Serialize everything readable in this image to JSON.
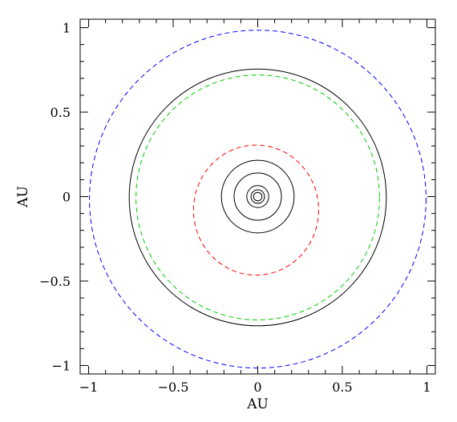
{
  "chart_data": {
    "type": "line",
    "title": "",
    "xlabel": "AU",
    "ylabel": "AU",
    "xlim": [
      -1.05,
      1.05
    ],
    "ylim": [
      -1.05,
      1.05
    ],
    "grid": false,
    "aspect": "equal",
    "x_ticks": {
      "major": [
        -1,
        -0.5,
        0,
        0.5,
        1
      ],
      "labels": [
        "−1",
        "−0.5",
        "0",
        "0.5",
        "1"
      ],
      "minor_step": 0.1
    },
    "y_ticks": {
      "major": [
        -1,
        -0.5,
        0,
        0.5,
        1
      ],
      "labels": [
        "−1",
        "−0.5",
        "0",
        "0.5",
        "1"
      ],
      "minor_step": 0.1
    },
    "curves": [
      {
        "kind": "orbit",
        "style": "solid",
        "color": "#000000",
        "cx": 0.0,
        "cy": 0.0,
        "rx": 0.025,
        "ry": 0.025
      },
      {
        "kind": "orbit",
        "style": "solid",
        "color": "#000000",
        "cx": 0.0,
        "cy": 0.0,
        "rx": 0.04,
        "ry": 0.04
      },
      {
        "kind": "orbit",
        "style": "solid",
        "color": "#000000",
        "cx": 0.0,
        "cy": 0.0,
        "rx": 0.065,
        "ry": 0.065
      },
      {
        "kind": "orbit",
        "style": "solid",
        "color": "#000000",
        "cx": 0.0,
        "cy": 0.0,
        "rx": 0.14,
        "ry": 0.14
      },
      {
        "kind": "orbit",
        "style": "solid",
        "color": "#000000",
        "cx": 0.0,
        "cy": 0.0,
        "rx": 0.215,
        "ry": 0.215
      },
      {
        "kind": "orbit",
        "style": "dashed",
        "color": "#ff0000",
        "cx": -0.01,
        "cy": -0.08,
        "rx": 0.37,
        "ry": 0.385
      },
      {
        "kind": "orbit",
        "style": "dashed",
        "color": "#00cc00",
        "cx": 0.0,
        "cy": -0.005,
        "rx": 0.72,
        "ry": 0.725
      },
      {
        "kind": "orbit",
        "style": "solid",
        "color": "#000000",
        "cx": 0.0,
        "cy": -0.005,
        "rx": 0.76,
        "ry": 0.76
      },
      {
        "kind": "orbit",
        "style": "dashed",
        "color": "#0000ff",
        "cx": 0.0,
        "cy": -0.015,
        "rx": 0.995,
        "ry": 1.0
      }
    ]
  }
}
